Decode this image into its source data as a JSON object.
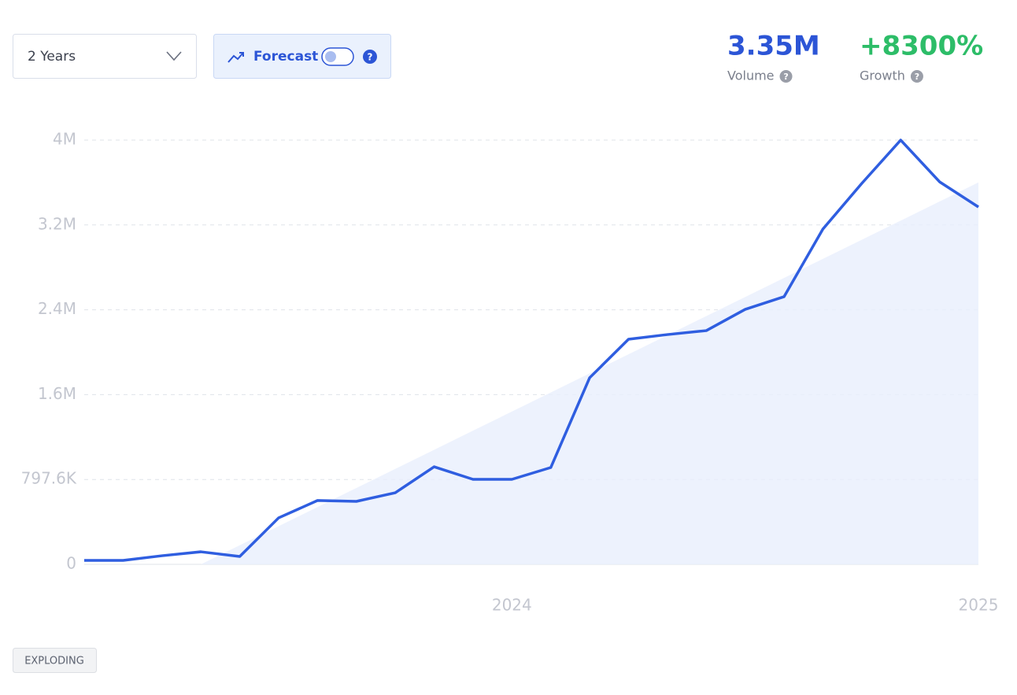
{
  "controls": {
    "range": "2 Years",
    "forecast": "Forecast",
    "help_icon": "?",
    "badge": "EXPLODING"
  },
  "stats": [
    {
      "value": "3.35M",
      "label": "Volume",
      "color": "#2c55d6"
    },
    {
      "value": "+8300%",
      "label": "Growth",
      "color": "#2dbd68"
    }
  ],
  "chart_data": {
    "type": "line",
    "categories": [
      null,
      null,
      null,
      null,
      null,
      null,
      null,
      null,
      null,
      null,
      null,
      "2024",
      null,
      null,
      null,
      null,
      null,
      null,
      null,
      null,
      null,
      null,
      null,
      "2025"
    ],
    "series": [
      {
        "color": "#2f5ee0",
        "values": [
          37000,
          37000,
          81000,
          118000,
          74000,
          437000,
          600000,
          592000,
          673000,
          917000,
          799000,
          799000,
          910000,
          1754000,
          2116000,
          2160000,
          2197000,
          2397000,
          2516000,
          3152000,
          3581000,
          3988000,
          3596000,
          3359000
        ]
      },
      {
        "color": "#e9effc",
        "values": [
          null,
          null,
          null,
          0,
          179500,
          359000,
          538500,
          718000,
          897500,
          1077000,
          1256500,
          1436000,
          1615500,
          1795000,
          1974500,
          2154000,
          2333500,
          2513000,
          2692500,
          2872000,
          3051500,
          3231000,
          3410500,
          3590000
        ]
      }
    ],
    "ylim": [
      0,
      3988000
    ],
    "yticks": [
      0,
      {
        "value": 797600,
        "label": "797.6K"
      },
      {
        "value": 1595200,
        "label": "1.6M"
      },
      {
        "value": 2392800,
        "label": "2.4M"
      },
      {
        "value": 3190400,
        "label": "3.2M"
      },
      {
        "value": 3988000,
        "label": "4M"
      }
    ],
    "grid": true
  }
}
